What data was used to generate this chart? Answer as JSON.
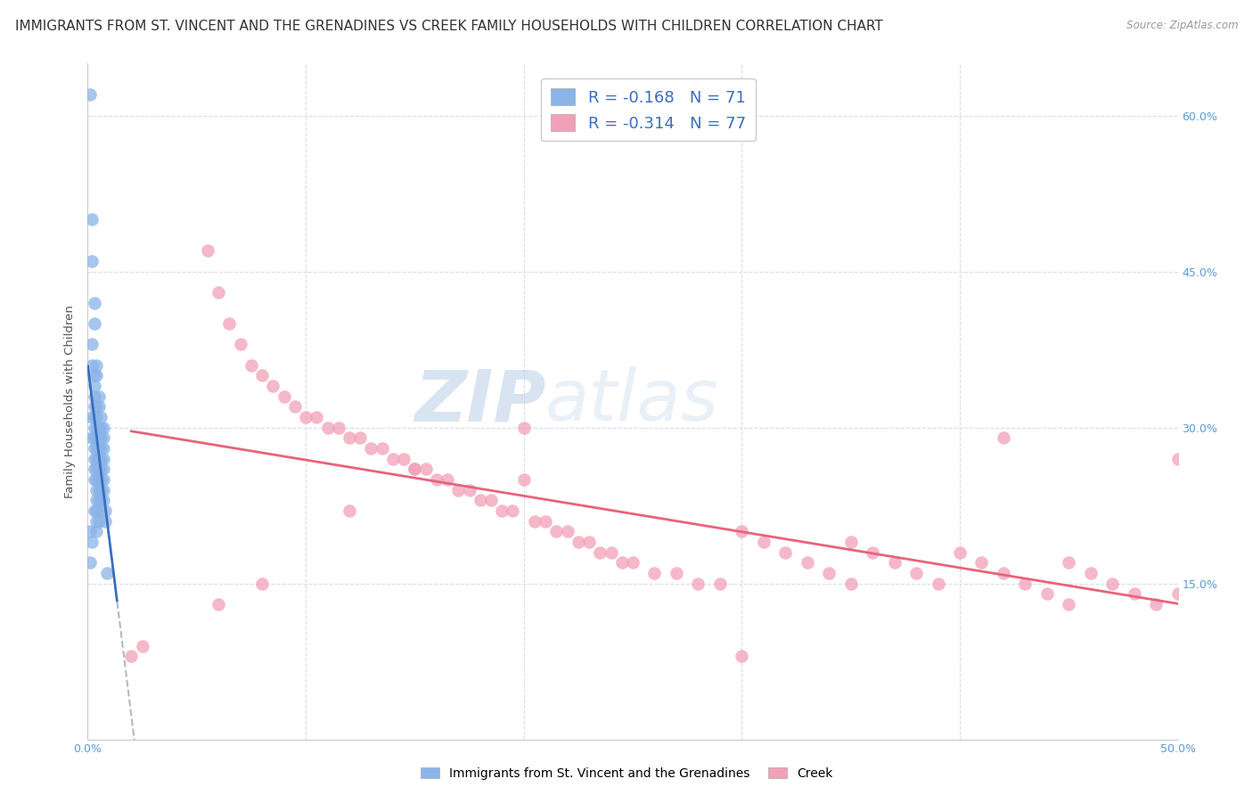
{
  "title": "IMMIGRANTS FROM ST. VINCENT AND THE GRENADINES VS CREEK FAMILY HOUSEHOLDS WITH CHILDREN CORRELATION CHART",
  "source": "Source: ZipAtlas.com",
  "ylabel": "Family Households with Children",
  "xlim": [
    0.0,
    0.5
  ],
  "ylim": [
    0.0,
    0.65
  ],
  "x_ticks": [
    0.0,
    0.1,
    0.2,
    0.3,
    0.4,
    0.5
  ],
  "x_tick_labels": [
    "0.0%",
    "",
    "",
    "",
    "",
    "50.0%"
  ],
  "y_ticks": [
    0.0,
    0.15,
    0.3,
    0.45,
    0.6
  ],
  "y_tick_labels_right": [
    "",
    "15.0%",
    "30.0%",
    "45.0%",
    "60.0%"
  ],
  "blue_color": "#8ab4e8",
  "pink_color": "#f2a0b8",
  "blue_line_color": "#3a6ebf",
  "pink_line_color": "#e8637a",
  "dashed_line_color": "#b0b8c8",
  "legend_blue_r": "-0.168",
  "legend_blue_n": "71",
  "legend_pink_r": "-0.314",
  "legend_pink_n": "77",
  "watermark_zip": "ZIP",
  "watermark_atlas": "atlas",
  "bottom_legend_blue": "Immigrants from St. Vincent and the Grenadines",
  "bottom_legend_pink": "Creek",
  "blue_scatter_x": [
    0.001,
    0.001,
    0.001,
    0.002,
    0.002,
    0.002,
    0.002,
    0.002,
    0.002,
    0.002,
    0.003,
    0.003,
    0.003,
    0.003,
    0.003,
    0.003,
    0.003,
    0.003,
    0.003,
    0.003,
    0.003,
    0.003,
    0.003,
    0.003,
    0.004,
    0.004,
    0.004,
    0.004,
    0.004,
    0.004,
    0.004,
    0.004,
    0.004,
    0.004,
    0.004,
    0.004,
    0.004,
    0.004,
    0.004,
    0.005,
    0.005,
    0.005,
    0.005,
    0.005,
    0.005,
    0.005,
    0.005,
    0.005,
    0.005,
    0.005,
    0.006,
    0.006,
    0.006,
    0.006,
    0.006,
    0.006,
    0.006,
    0.006,
    0.006,
    0.006,
    0.007,
    0.007,
    0.007,
    0.007,
    0.007,
    0.007,
    0.007,
    0.007,
    0.008,
    0.008,
    0.009
  ],
  "blue_scatter_y": [
    0.62,
    0.2,
    0.17,
    0.5,
    0.46,
    0.38,
    0.36,
    0.31,
    0.29,
    0.19,
    0.42,
    0.4,
    0.35,
    0.34,
    0.33,
    0.32,
    0.31,
    0.3,
    0.29,
    0.28,
    0.27,
    0.26,
    0.25,
    0.22,
    0.36,
    0.35,
    0.32,
    0.31,
    0.3,
    0.29,
    0.28,
    0.27,
    0.26,
    0.25,
    0.24,
    0.23,
    0.22,
    0.21,
    0.2,
    0.33,
    0.32,
    0.3,
    0.29,
    0.28,
    0.27,
    0.26,
    0.25,
    0.24,
    0.23,
    0.21,
    0.31,
    0.3,
    0.29,
    0.28,
    0.27,
    0.26,
    0.25,
    0.24,
    0.23,
    0.22,
    0.3,
    0.29,
    0.28,
    0.27,
    0.26,
    0.25,
    0.24,
    0.23,
    0.22,
    0.21,
    0.16
  ],
  "pink_scatter_x": [
    0.02,
    0.025,
    0.055,
    0.06,
    0.065,
    0.07,
    0.075,
    0.08,
    0.085,
    0.09,
    0.095,
    0.1,
    0.105,
    0.11,
    0.115,
    0.12,
    0.125,
    0.13,
    0.135,
    0.14,
    0.145,
    0.15,
    0.155,
    0.16,
    0.165,
    0.17,
    0.175,
    0.18,
    0.185,
    0.19,
    0.195,
    0.2,
    0.205,
    0.21,
    0.215,
    0.22,
    0.225,
    0.23,
    0.235,
    0.24,
    0.245,
    0.25,
    0.26,
    0.27,
    0.28,
    0.29,
    0.3,
    0.31,
    0.32,
    0.33,
    0.34,
    0.35,
    0.36,
    0.37,
    0.38,
    0.39,
    0.4,
    0.41,
    0.42,
    0.43,
    0.44,
    0.45,
    0.46,
    0.47,
    0.48,
    0.49,
    0.5,
    0.35,
    0.15,
    0.42,
    0.06,
    0.12,
    0.2,
    0.3,
    0.5,
    0.45,
    0.08
  ],
  "pink_scatter_y": [
    0.08,
    0.09,
    0.47,
    0.43,
    0.4,
    0.38,
    0.36,
    0.35,
    0.34,
    0.33,
    0.32,
    0.31,
    0.31,
    0.3,
    0.3,
    0.29,
    0.29,
    0.28,
    0.28,
    0.27,
    0.27,
    0.26,
    0.26,
    0.25,
    0.25,
    0.24,
    0.24,
    0.23,
    0.23,
    0.22,
    0.22,
    0.3,
    0.21,
    0.21,
    0.2,
    0.2,
    0.19,
    0.19,
    0.18,
    0.18,
    0.17,
    0.17,
    0.16,
    0.16,
    0.15,
    0.15,
    0.2,
    0.19,
    0.18,
    0.17,
    0.16,
    0.19,
    0.18,
    0.17,
    0.16,
    0.15,
    0.18,
    0.17,
    0.16,
    0.15,
    0.14,
    0.17,
    0.16,
    0.15,
    0.14,
    0.13,
    0.14,
    0.15,
    0.26,
    0.29,
    0.13,
    0.22,
    0.25,
    0.08,
    0.27,
    0.13,
    0.15
  ],
  "title_fontsize": 11,
  "axis_label_fontsize": 9.5,
  "tick_fontsize": 9,
  "background_color": "#ffffff",
  "grid_color": "#d8dde8"
}
